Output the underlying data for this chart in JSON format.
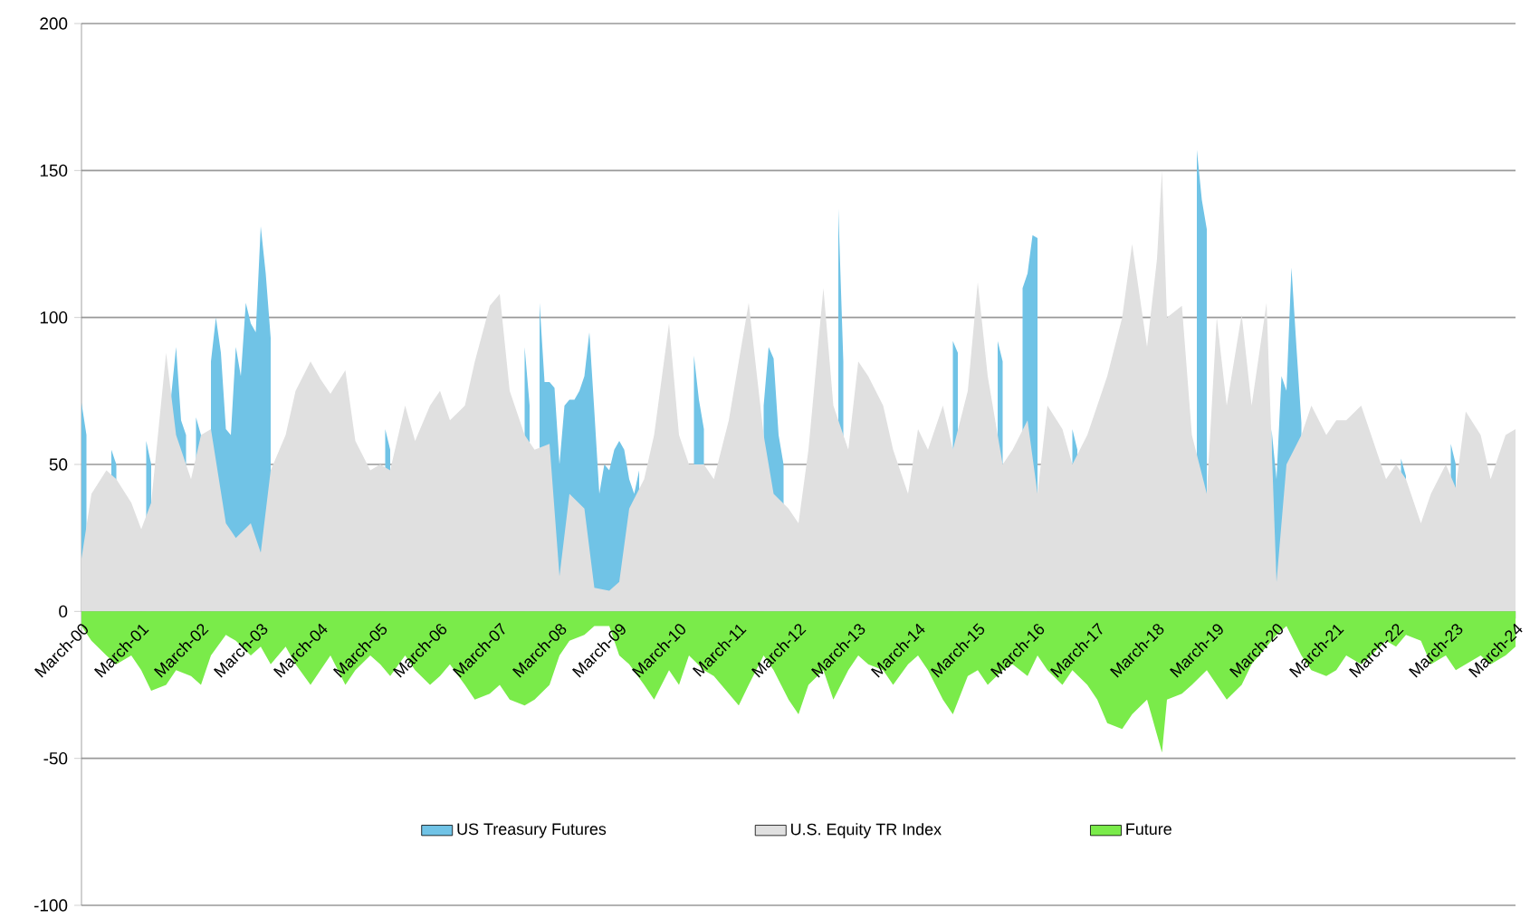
{
  "chart_data": {
    "type": "area",
    "x": [
      "2000-03",
      "2000-05",
      "2000-08",
      "2000-10",
      "2001-01",
      "2001-03",
      "2001-05",
      "2001-08",
      "2001-10",
      "2002-01",
      "2002-03",
      "2002-05",
      "2002-08",
      "2002-10",
      "2003-01",
      "2003-03",
      "2003-05",
      "2003-08",
      "2003-10",
      "2004-01",
      "2004-03",
      "2004-05",
      "2004-08",
      "2004-10",
      "2005-01",
      "2005-03",
      "2005-05",
      "2005-08",
      "2005-10",
      "2006-01",
      "2006-03",
      "2006-05",
      "2006-08",
      "2006-10",
      "2007-01",
      "2007-03",
      "2007-05",
      "2007-08",
      "2007-10",
      "2008-01",
      "2008-03",
      "2008-05",
      "2008-08",
      "2008-10",
      "2009-01",
      "2009-03",
      "2009-05",
      "2009-08",
      "2009-10",
      "2010-01",
      "2010-03",
      "2010-05",
      "2010-08",
      "2010-10",
      "2011-01",
      "2011-03",
      "2011-05",
      "2011-08",
      "2011-10",
      "2012-01",
      "2012-03",
      "2012-05",
      "2012-08",
      "2012-10",
      "2013-01",
      "2013-03",
      "2013-05",
      "2013-08",
      "2013-10",
      "2014-01",
      "2014-03",
      "2014-05",
      "2014-08",
      "2014-10",
      "2015-01",
      "2015-03",
      "2015-05",
      "2015-08",
      "2015-10",
      "2016-01",
      "2016-03",
      "2016-05",
      "2016-08",
      "2016-10",
      "2017-01",
      "2017-03",
      "2017-05",
      "2017-08",
      "2017-10",
      "2018-01",
      "2018-03",
      "2018-04",
      "2018-05",
      "2018-08",
      "2018-10",
      "2019-01",
      "2019-03",
      "2019-05",
      "2019-08",
      "2019-10",
      "2020-01",
      "2020-03",
      "2020-05",
      "2020-08",
      "2020-10",
      "2021-01",
      "2021-03",
      "2021-05",
      "2021-08",
      "2021-10",
      "2022-01",
      "2022-03",
      "2022-05",
      "2022-08",
      "2022-10",
      "2023-01",
      "2023-03",
      "2023-05",
      "2023-08",
      "2023-10",
      "2024-01",
      "2024-03"
    ],
    "series": [
      {
        "name": "US Treasury Futures",
        "color": "#70c3e6",
        "x": [
          "2000-03",
          "2000-04",
          "2000-05",
          "2000-06",
          "2000-09",
          "2000-10",
          "2000-11",
          "2001-04",
          "2001-05",
          "2001-06",
          "2001-09",
          "2001-10",
          "2001-11",
          "2001-12",
          "2002-01",
          "2002-02",
          "2002-03",
          "2002-04",
          "2002-05",
          "2002-06",
          "2002-07",
          "2002-08",
          "2002-09",
          "2002-10",
          "2002-11",
          "2002-12",
          "2003-01",
          "2003-02",
          "2003-03",
          "2003-04",
          "2003-05",
          "2003-06",
          "2005-04",
          "2005-05",
          "2005-06",
          "2007-08",
          "2007-09",
          "2007-10",
          "2007-11",
          "2007-12",
          "2008-01",
          "2008-02",
          "2008-03",
          "2008-04",
          "2008-05",
          "2008-06",
          "2008-07",
          "2008-08",
          "2008-09",
          "2008-10",
          "2008-11",
          "2008-12",
          "2009-01",
          "2009-02",
          "2009-03",
          "2009-04",
          "2009-05",
          "2009-06",
          "2009-07",
          "2009-08",
          "2010-06",
          "2010-07",
          "2010-08",
          "2010-09",
          "2011-08",
          "2011-09",
          "2011-10",
          "2011-11",
          "2011-12",
          "2012-01",
          "2012-11",
          "2012-12",
          "2013-01",
          "2014-10",
          "2014-11",
          "2014-12",
          "2015-07",
          "2015-08",
          "2015-09",
          "2015-12",
          "2016-01",
          "2016-02",
          "2016-03",
          "2016-04",
          "2016-10",
          "2016-11",
          "2016-12",
          "2018-11",
          "2018-12",
          "2019-01",
          "2019-02",
          "2020-02",
          "2020-03",
          "2020-04",
          "2020-05",
          "2020-06",
          "2020-07",
          "2020-08",
          "2020-09",
          "2022-04",
          "2022-05",
          "2022-06",
          "2023-02",
          "2023-03"
        ],
        "values": [
          71,
          60,
          null,
          null,
          55,
          50,
          null,
          58,
          50,
          null,
          73,
          90,
          65,
          60,
          null,
          66,
          60,
          null,
          85,
          100,
          88,
          62,
          60,
          90,
          80,
          105,
          98,
          95,
          131,
          115,
          93,
          null,
          62,
          55,
          null,
          90,
          70,
          null,
          105,
          78,
          78,
          76,
          50,
          70,
          72,
          72,
          75,
          80,
          95,
          68,
          40,
          50,
          48,
          55,
          58,
          55,
          45,
          40,
          48,
          null,
          87,
          72,
          62,
          null,
          70,
          90,
          86,
          60,
          50,
          null,
          137,
          85,
          null,
          92,
          88,
          null,
          92,
          85,
          null,
          110,
          115,
          128,
          127,
          null,
          62,
          55,
          null,
          157,
          140,
          130,
          null,
          62,
          45,
          80,
          75,
          117,
          90,
          64,
          null,
          52,
          46,
          null,
          57,
          50
        ]
      },
      {
        "name": "U.S. Equity TR Index",
        "color": "#e0e0e0",
        "values": [
          18,
          40,
          48,
          45,
          37,
          28,
          37,
          88,
          60,
          45,
          60,
          62,
          30,
          25,
          30,
          20,
          48,
          60,
          75,
          85,
          79,
          74,
          82,
          58,
          48,
          50,
          48,
          70,
          58,
          70,
          75,
          65,
          70,
          85,
          104,
          108,
          75,
          60,
          55,
          57,
          12,
          40,
          35,
          8,
          7,
          10,
          35,
          45,
          60,
          98,
          60,
          50,
          50,
          45,
          65,
          85,
          105,
          60,
          40,
          35,
          30,
          55,
          110,
          70,
          55,
          85,
          80,
          70,
          55,
          40,
          62,
          55,
          70,
          55,
          75,
          112,
          80,
          50,
          55,
          65,
          40,
          70,
          62,
          50,
          60,
          70,
          80,
          100,
          125,
          90,
          120,
          150,
          100,
          104,
          60,
          40,
          100,
          70,
          101,
          70,
          105,
          10,
          50,
          60,
          70,
          60,
          65,
          65,
          70,
          60,
          45,
          50,
          45,
          30,
          40,
          50,
          42,
          68,
          60,
          45,
          60,
          62
        ]
      },
      {
        "name": "Future",
        "color": "#7aeb4a",
        "values": [
          -5,
          -10,
          -15,
          -18,
          -15,
          -20,
          -27,
          -25,
          -20,
          -22,
          -25,
          -15,
          -8,
          -10,
          -15,
          -12,
          -18,
          -12,
          -18,
          -25,
          -20,
          -15,
          -25,
          -20,
          -15,
          -18,
          -22,
          -15,
          -20,
          -25,
          -22,
          -18,
          -25,
          -30,
          -28,
          -25,
          -30,
          -32,
          -30,
          -25,
          -15,
          -10,
          -8,
          -5,
          -5,
          -15,
          -18,
          -25,
          -30,
          -20,
          -25,
          -15,
          -20,
          -22,
          -28,
          -32,
          -25,
          -15,
          -20,
          -30,
          -35,
          -25,
          -20,
          -30,
          -20,
          -15,
          -18,
          -20,
          -25,
          -18,
          -15,
          -20,
          -30,
          -35,
          -22,
          -20,
          -25,
          -20,
          -18,
          -22,
          -15,
          -20,
          -25,
          -20,
          -25,
          -30,
          -38,
          -40,
          -35,
          -30,
          -42,
          -48,
          -30,
          -28,
          -25,
          -20,
          -25,
          -30,
          -25,
          -18,
          -12,
          -8,
          -5,
          -15,
          -20,
          -22,
          -20,
          -15,
          -18,
          -15,
          -10,
          -12,
          -8,
          -10,
          -18,
          -15,
          -20,
          -18,
          -15,
          -18,
          -15,
          -12
        ]
      }
    ],
    "xlim": [
      "2000-03",
      "2024-03"
    ],
    "xticks": [
      {
        "value": "2000-03",
        "label": "March-00"
      },
      {
        "value": "2001-03",
        "label": "March-01"
      },
      {
        "value": "2002-03",
        "label": "March-02"
      },
      {
        "value": "2003-03",
        "label": "March-03"
      },
      {
        "value": "2004-03",
        "label": "March-04"
      },
      {
        "value": "2005-03",
        "label": "March-05"
      },
      {
        "value": "2006-03",
        "label": "March-06"
      },
      {
        "value": "2007-03",
        "label": "March-07"
      },
      {
        "value": "2008-03",
        "label": "March-08"
      },
      {
        "value": "2009-03",
        "label": "March-09"
      },
      {
        "value": "2010-03",
        "label": "March-10"
      },
      {
        "value": "2011-03",
        "label": "March-11"
      },
      {
        "value": "2012-03",
        "label": "March-12"
      },
      {
        "value": "2013-03",
        "label": "March-13"
      },
      {
        "value": "2014-03",
        "label": "March-14"
      },
      {
        "value": "2015-03",
        "label": "March-15"
      },
      {
        "value": "2016-03",
        "label": "March-16"
      },
      {
        "value": "2017-03",
        "label": "March-17"
      },
      {
        "value": "2018-03",
        "label": "March-18"
      },
      {
        "value": "2019-03",
        "label": "March-19"
      },
      {
        "value": "2020-03",
        "label": "March-20"
      },
      {
        "value": "2021-03",
        "label": "March-21"
      },
      {
        "value": "2022-03",
        "label": "March-22"
      },
      {
        "value": "2023-03",
        "label": "March-23"
      },
      {
        "value": "2024-03",
        "label": "March-24"
      }
    ],
    "ylim": [
      -100,
      200
    ],
    "yticks": [
      -100,
      -50,
      0,
      50,
      100,
      150,
      200
    ],
    "grid": "y",
    "legend": "bottom"
  }
}
